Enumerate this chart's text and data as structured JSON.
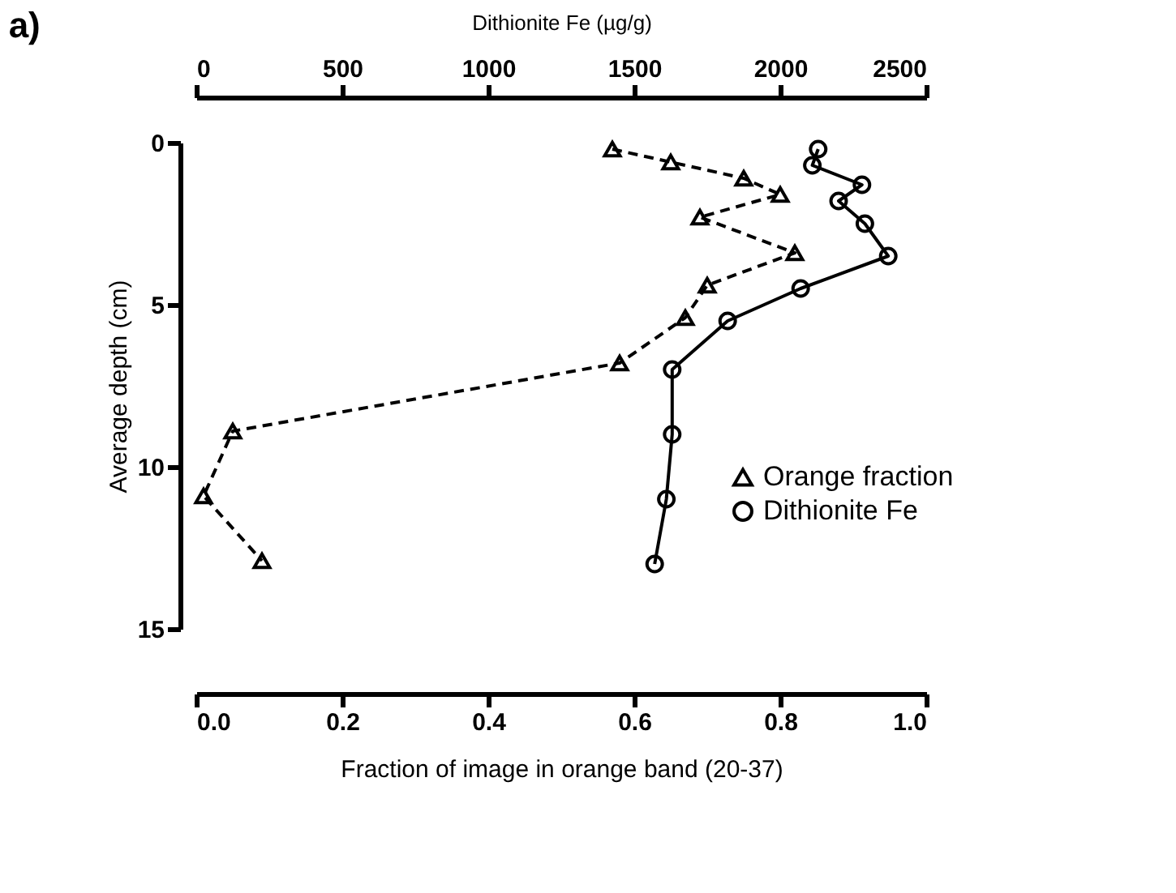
{
  "chart_data": {
    "type": "line",
    "title": "a)",
    "xlabel": "Fraction of image in orange band (20-37)",
    "x2label": "Dithionite Fe  (µg/g)",
    "ylabel": "Average depth (cm)",
    "series": [
      {
        "name": "Orange fraction",
        "color": "#000000",
        "marker": "triangle",
        "line_style": "dashed",
        "values": [
          0.2,
          0.6,
          1.1,
          1.6,
          2.3,
          3.4,
          4.4,
          5.4,
          6.8,
          8.9,
          10.9,
          12.9
        ],
        "x": [
          0.57,
          0.65,
          0.75,
          0.8,
          0.69,
          0.82,
          0.7,
          0.67,
          0.58,
          0.05,
          0.01,
          0.09
        ]
      },
      {
        "name": "Dithionite Fe",
        "color": "#000000",
        "marker": "circle",
        "line_style": "solid",
        "axis": "x2",
        "values": [
          0.2,
          0.7,
          1.3,
          1.8,
          2.5,
          3.5,
          4.5,
          5.5,
          7.0,
          9.0,
          11.0,
          13.0
        ],
        "x": [
          2130,
          2110,
          2280,
          2200,
          2290,
          2370,
          2070,
          1820,
          1630,
          1630,
          1610,
          1570
        ]
      }
    ],
    "xlim": [
      0,
      1
    ],
    "xticks": [
      {
        "value": 0,
        "label": "0.0"
      },
      0.2,
      0.4,
      0.6,
      0.8,
      {
        "value": 1,
        "label": "1.0"
      }
    ],
    "x2lim": [
      0,
      2500
    ],
    "x2ticks": [
      0,
      500,
      1000,
      1500,
      2000,
      2500
    ],
    "ylim": [
      15,
      0
    ],
    "yticks": [
      0,
      5,
      10,
      15
    ],
    "grid": false,
    "legend": "bottom right"
  }
}
